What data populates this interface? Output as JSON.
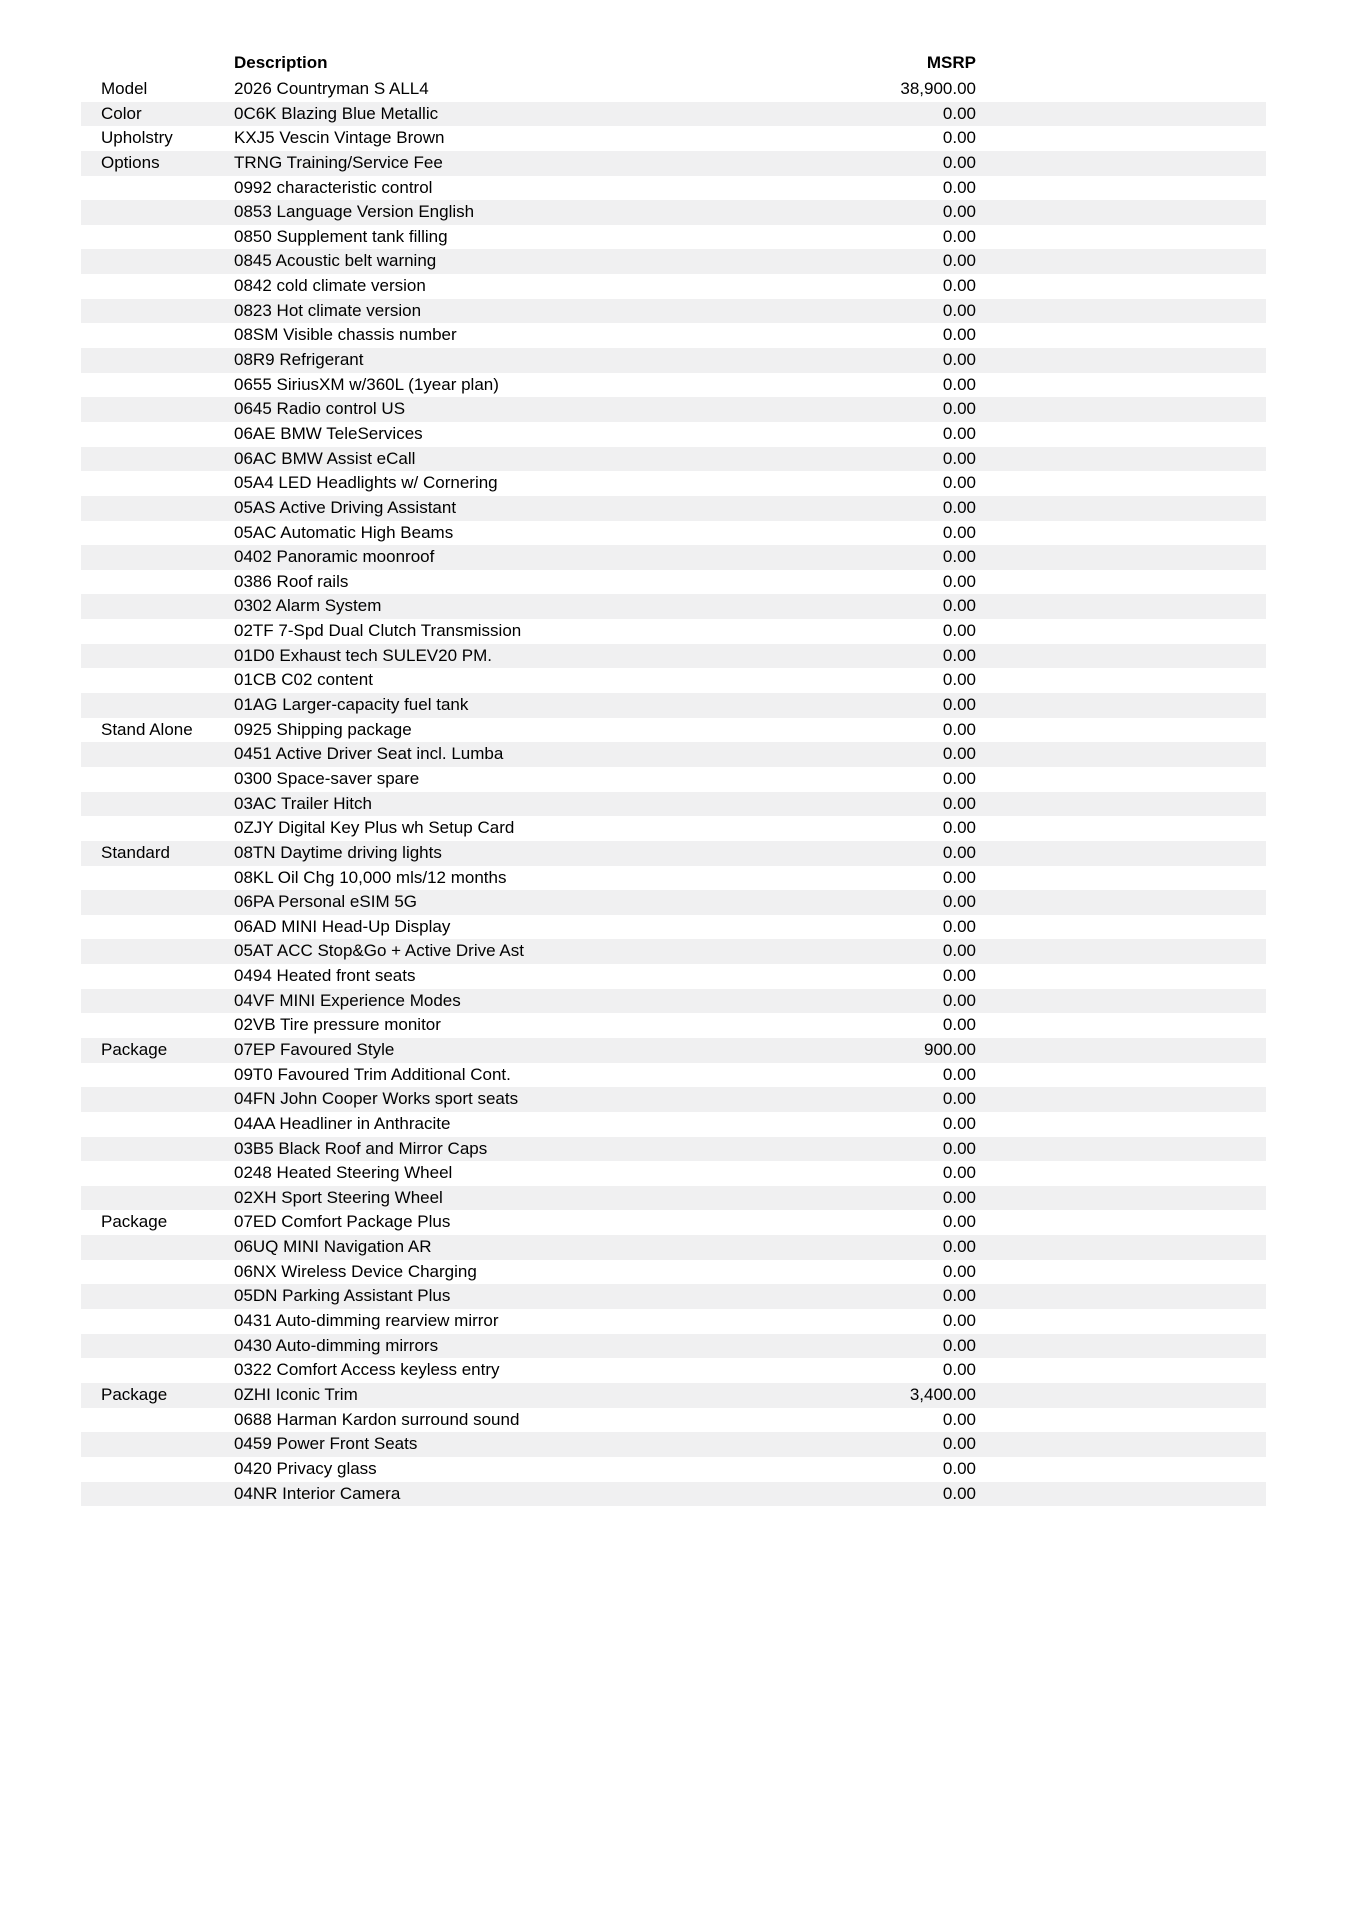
{
  "colors": {
    "row_stripe": "#f0f0f1",
    "text": "#000000",
    "background": "#ffffff"
  },
  "table": {
    "header": {
      "description": "Description",
      "msrp": "MSRP"
    },
    "rows": [
      {
        "category": "Model",
        "description": "2026 Countryman S ALL4",
        "msrp": "38,900.00"
      },
      {
        "category": "Color",
        "description": "0C6K Blazing Blue Metallic",
        "msrp": "0.00"
      },
      {
        "category": "Upholstry",
        "description": "KXJ5 Vescin Vintage Brown",
        "msrp": "0.00"
      },
      {
        "category": "Options",
        "description": "TRNG Training/Service Fee",
        "msrp": "0.00"
      },
      {
        "category": "",
        "description": "0992 characteristic control",
        "msrp": "0.00"
      },
      {
        "category": "",
        "description": "0853 Language Version English",
        "msrp": "0.00"
      },
      {
        "category": "",
        "description": "0850 Supplement tank filling",
        "msrp": "0.00"
      },
      {
        "category": "",
        "description": "0845 Acoustic belt warning",
        "msrp": "0.00"
      },
      {
        "category": "",
        "description": "0842 cold climate version",
        "msrp": "0.00"
      },
      {
        "category": "",
        "description": "0823 Hot climate version",
        "msrp": "0.00"
      },
      {
        "category": "",
        "description": "08SM Visible chassis number",
        "msrp": "0.00"
      },
      {
        "category": "",
        "description": "08R9 Refrigerant",
        "msrp": "0.00"
      },
      {
        "category": "",
        "description": "0655 SiriusXM w/360L (1year plan)",
        "msrp": "0.00"
      },
      {
        "category": "",
        "description": "0645 Radio control US",
        "msrp": "0.00"
      },
      {
        "category": "",
        "description": "06AE BMW TeleServices",
        "msrp": "0.00"
      },
      {
        "category": "",
        "description": "06AC BMW Assist eCall",
        "msrp": "0.00"
      },
      {
        "category": "",
        "description": "05A4 LED Headlights w/ Cornering",
        "msrp": "0.00"
      },
      {
        "category": "",
        "description": "05AS Active Driving Assistant",
        "msrp": "0.00"
      },
      {
        "category": "",
        "description": "05AC Automatic High Beams",
        "msrp": "0.00"
      },
      {
        "category": "",
        "description": "0402 Panoramic moonroof",
        "msrp": "0.00"
      },
      {
        "category": "",
        "description": "0386 Roof rails",
        "msrp": "0.00"
      },
      {
        "category": "",
        "description": "0302 Alarm System",
        "msrp": "0.00"
      },
      {
        "category": "",
        "description": "02TF 7-Spd Dual Clutch Transmission",
        "msrp": "0.00"
      },
      {
        "category": "",
        "description": "01D0 Exhaust tech SULEV20 PM.",
        "msrp": "0.00"
      },
      {
        "category": "",
        "description": "01CB C02 content",
        "msrp": "0.00"
      },
      {
        "category": "",
        "description": "01AG Larger-capacity fuel tank",
        "msrp": "0.00"
      },
      {
        "category": "Stand Alone",
        "description": "0925 Shipping package",
        "msrp": "0.00"
      },
      {
        "category": "",
        "description": "0451 Active Driver Seat incl. Lumba",
        "msrp": "0.00"
      },
      {
        "category": "",
        "description": "0300 Space-saver spare",
        "msrp": "0.00"
      },
      {
        "category": "",
        "description": "03AC Trailer Hitch",
        "msrp": "0.00"
      },
      {
        "category": "",
        "description": "0ZJY Digital Key Plus wh Setup Card",
        "msrp": "0.00"
      },
      {
        "category": "Standard",
        "description": "08TN Daytime driving lights",
        "msrp": "0.00"
      },
      {
        "category": "",
        "description": "08KL Oil Chg 10,000 mls/12 months",
        "msrp": "0.00"
      },
      {
        "category": "",
        "description": "06PA Personal eSIM 5G",
        "msrp": "0.00"
      },
      {
        "category": "",
        "description": "06AD MINI Head-Up Display",
        "msrp": "0.00"
      },
      {
        "category": "",
        "description": "05AT ACC Stop&Go + Active Drive Ast",
        "msrp": "0.00"
      },
      {
        "category": "",
        "description": "0494 Heated front seats",
        "msrp": "0.00"
      },
      {
        "category": "",
        "description": "04VF MINI Experience Modes",
        "msrp": "0.00"
      },
      {
        "category": "",
        "description": "02VB Tire pressure monitor",
        "msrp": "0.00"
      },
      {
        "category": "Package",
        "description": "07EP Favoured Style",
        "msrp": "900.00"
      },
      {
        "category": "",
        "description": "09T0 Favoured Trim Additional Cont.",
        "msrp": "0.00"
      },
      {
        "category": "",
        "description": "04FN John Cooper Works sport seats",
        "msrp": "0.00"
      },
      {
        "category": "",
        "description": "04AA Headliner in Anthracite",
        "msrp": "0.00"
      },
      {
        "category": "",
        "description": "03B5 Black Roof and Mirror Caps",
        "msrp": "0.00"
      },
      {
        "category": "",
        "description": "0248 Heated Steering Wheel",
        "msrp": "0.00"
      },
      {
        "category": "",
        "description": "02XH Sport Steering Wheel",
        "msrp": "0.00"
      },
      {
        "category": "Package",
        "description": "07ED Comfort Package Plus",
        "msrp": "0.00"
      },
      {
        "category": "",
        "description": "06UQ MINI Navigation AR",
        "msrp": "0.00"
      },
      {
        "category": "",
        "description": "06NX Wireless Device Charging",
        "msrp": "0.00"
      },
      {
        "category": "",
        "description": "05DN Parking Assistant Plus",
        "msrp": "0.00"
      },
      {
        "category": "",
        "description": "0431 Auto-dimming rearview mirror",
        "msrp": "0.00"
      },
      {
        "category": "",
        "description": "0430 Auto-dimming mirrors",
        "msrp": "0.00"
      },
      {
        "category": "",
        "description": "0322 Comfort Access keyless entry",
        "msrp": "0.00"
      },
      {
        "category": "Package",
        "description": "0ZHI Iconic Trim",
        "msrp": "3,400.00"
      },
      {
        "category": "",
        "description": "0688 Harman Kardon surround sound",
        "msrp": "0.00"
      },
      {
        "category": "",
        "description": "0459 Power Front Seats",
        "msrp": "0.00"
      },
      {
        "category": "",
        "description": "0420 Privacy glass",
        "msrp": "0.00"
      },
      {
        "category": "",
        "description": "04NR Interior Camera",
        "msrp": "0.00"
      }
    ]
  }
}
